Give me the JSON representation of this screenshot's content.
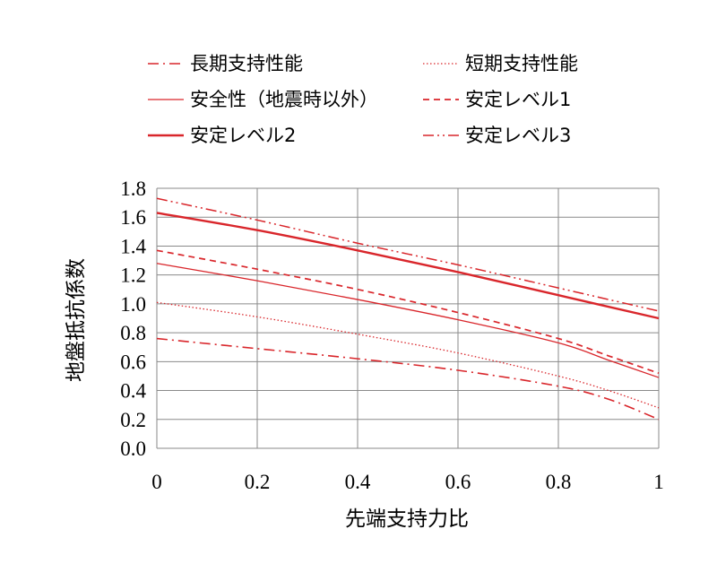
{
  "chart_data": {
    "type": "line",
    "title": "",
    "xlabel": "先端支持力比",
    "ylabel": "地盤抵抗係数",
    "xlim": [
      0,
      1
    ],
    "ylim": [
      0,
      1.8
    ],
    "x_ticks": [
      "0",
      "0.2",
      "0.4",
      "0.6",
      "0.8",
      "1"
    ],
    "y_ticks": [
      "0.0",
      "0.2",
      "0.4",
      "0.6",
      "0.8",
      "1.0",
      "1.2",
      "1.4",
      "1.6",
      "1.8"
    ],
    "grid": true,
    "legend_position": "top",
    "line_color": "#d9262b",
    "series": [
      {
        "name": "長期支持性能",
        "style": "dash-dot",
        "x": [
          0,
          0.2,
          0.4,
          0.6,
          0.8,
          0.9,
          1.0
        ],
        "y": [
          0.76,
          0.69,
          0.62,
          0.54,
          0.43,
          0.34,
          0.2
        ]
      },
      {
        "name": "短期支持性能",
        "style": "dotted",
        "x": [
          0,
          0.2,
          0.4,
          0.6,
          0.8,
          0.9,
          1.0
        ],
        "y": [
          1.01,
          0.91,
          0.79,
          0.66,
          0.5,
          0.4,
          0.28
        ]
      },
      {
        "name": "安全性（地震時以外）",
        "style": "thin-solid",
        "x": [
          0,
          0.2,
          0.4,
          0.6,
          0.8,
          0.9,
          1.0
        ],
        "y": [
          1.28,
          1.16,
          1.03,
          0.89,
          0.73,
          0.61,
          0.49
        ]
      },
      {
        "name": "安定レベル1",
        "style": "dashed",
        "x": [
          0,
          0.2,
          0.4,
          0.6,
          0.8,
          0.9,
          1.0
        ],
        "y": [
          1.37,
          1.24,
          1.1,
          0.94,
          0.76,
          0.64,
          0.52
        ]
      },
      {
        "name": "安定レベル2",
        "style": "thick-solid",
        "x": [
          0,
          0.2,
          0.4,
          0.6,
          0.8,
          1.0
        ],
        "y": [
          1.63,
          1.51,
          1.37,
          1.22,
          1.06,
          0.9
        ]
      },
      {
        "name": "安定レベル3",
        "style": "dash-dot-dot",
        "x": [
          0,
          0.2,
          0.4,
          0.6,
          0.8,
          1.0
        ],
        "y": [
          1.73,
          1.58,
          1.42,
          1.27,
          1.11,
          0.95
        ]
      }
    ]
  }
}
